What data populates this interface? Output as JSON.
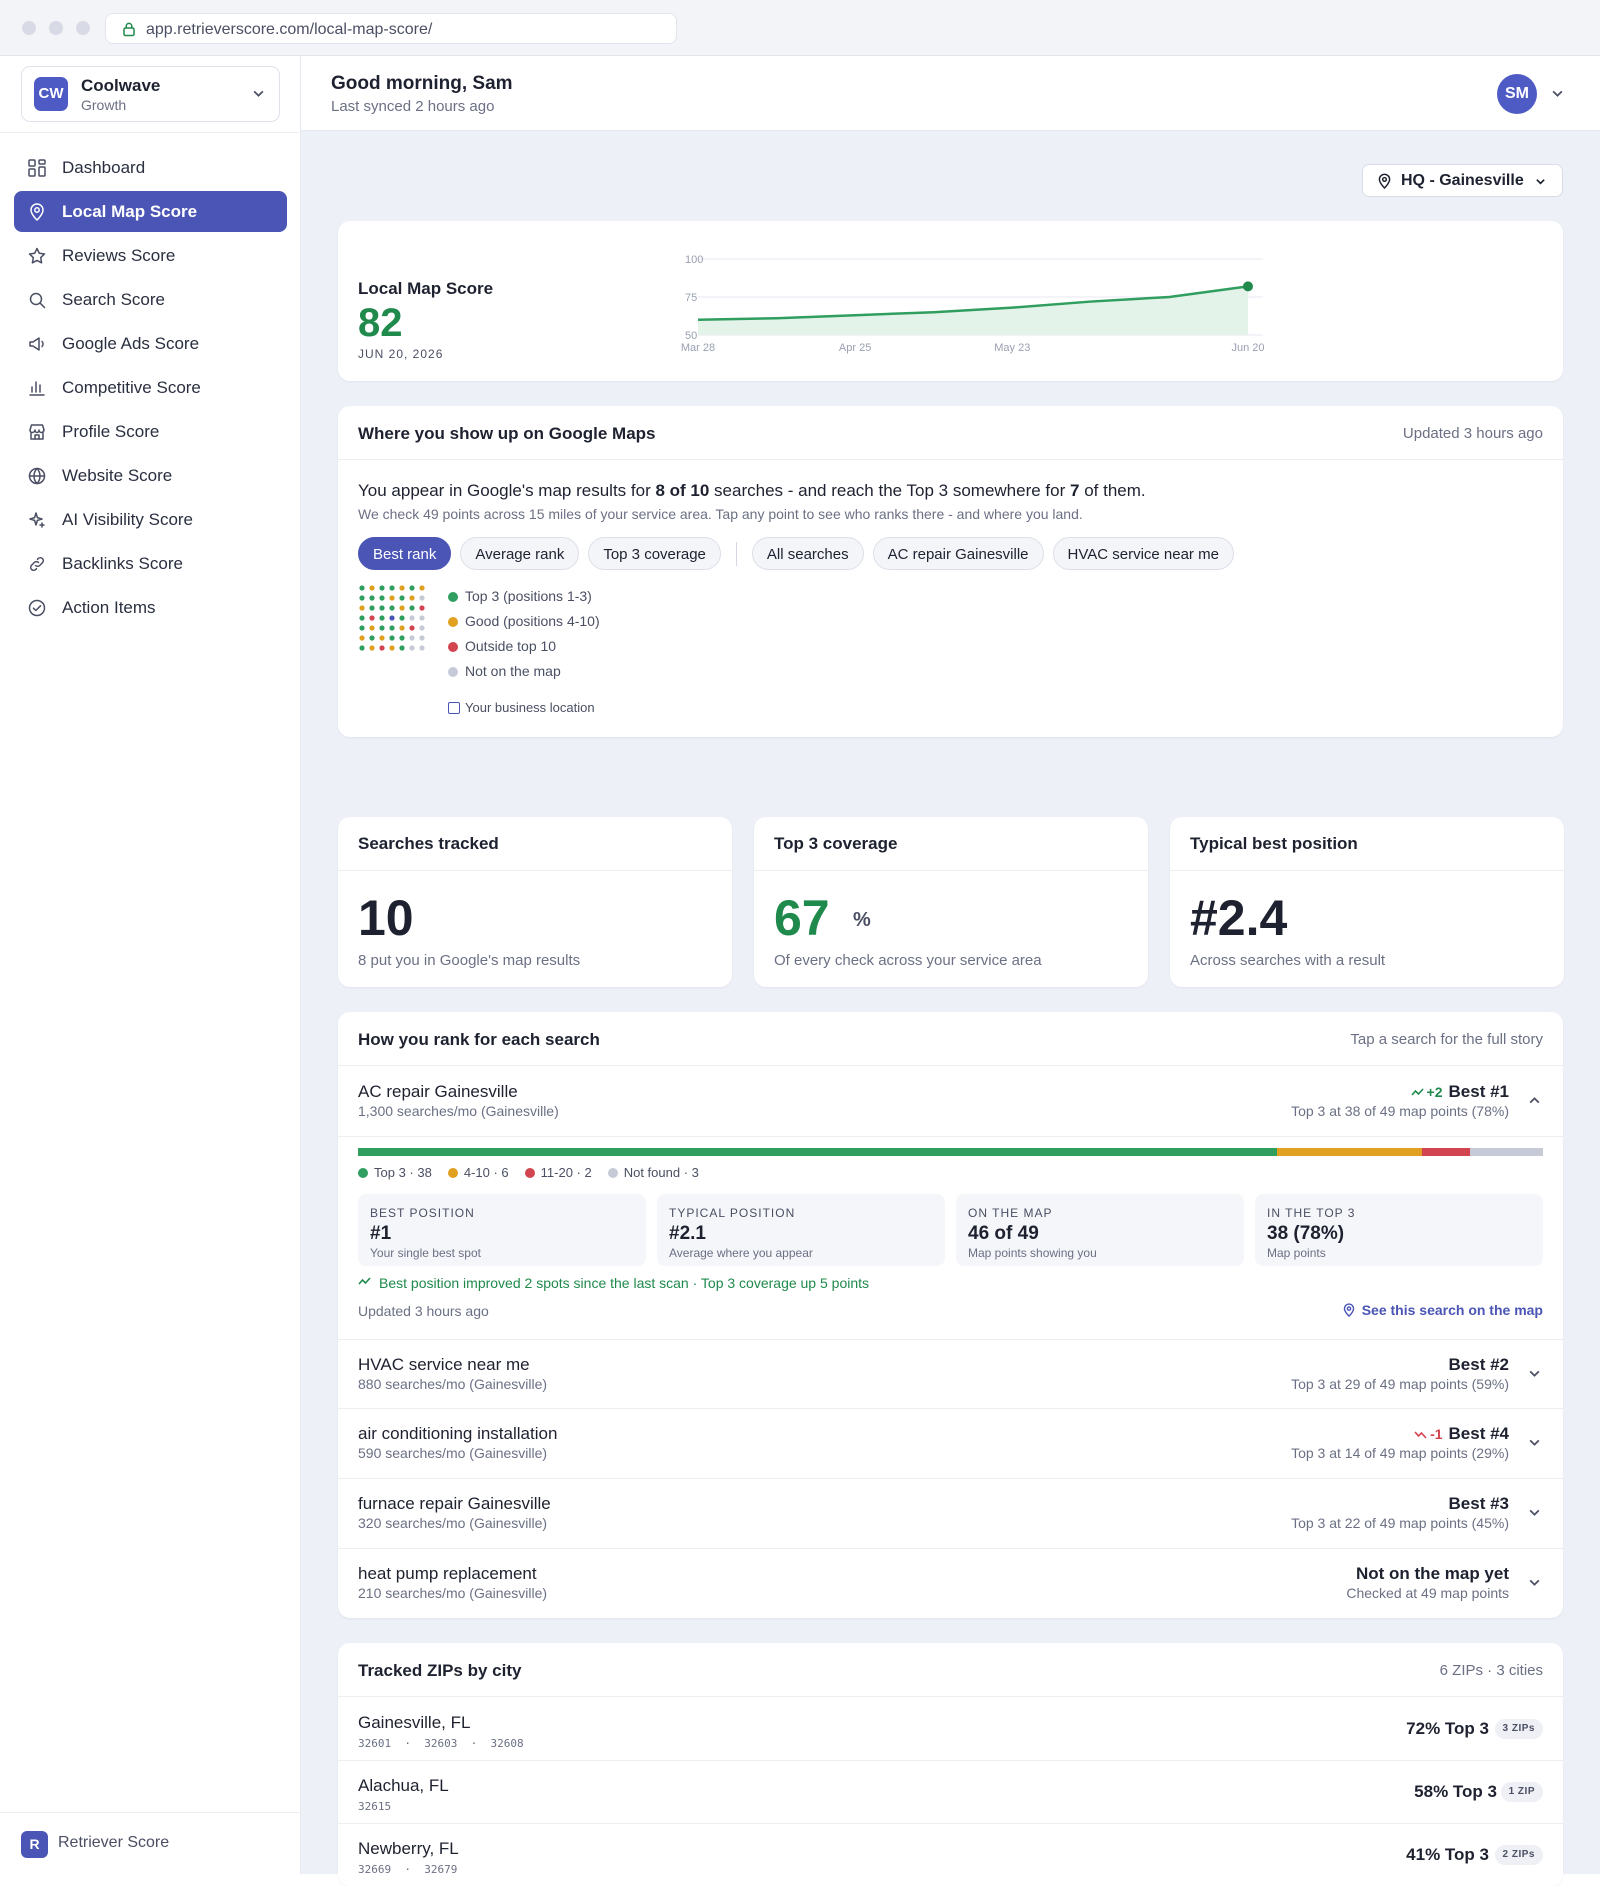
{
  "browser": {
    "url": "app.retrieverscore.com/local-map-score/"
  },
  "workspace": {
    "initials": "CW",
    "name": "Coolwave",
    "plan": "Growth"
  },
  "nav": [
    {
      "label": "Dashboard",
      "icon": "grid-icon"
    },
    {
      "label": "Local Map Score",
      "icon": "map-pin-icon",
      "active": true
    },
    {
      "label": "Reviews Score",
      "icon": "star-icon"
    },
    {
      "label": "Search Score",
      "icon": "search-icon"
    },
    {
      "label": "Google Ads Score",
      "icon": "megaphone-icon"
    },
    {
      "label": "Competitive Score",
      "icon": "bar-chart-icon"
    },
    {
      "label": "Profile Score",
      "icon": "storefront-icon"
    },
    {
      "label": "Website Score",
      "icon": "globe-icon"
    },
    {
      "label": "AI Visibility Score",
      "icon": "sparkle-icon"
    },
    {
      "label": "Backlinks Score",
      "icon": "link-icon"
    },
    {
      "label": "Action Items",
      "icon": "check-circle-icon"
    }
  ],
  "footer": {
    "logo": "R",
    "label": "Retriever Score"
  },
  "header": {
    "greeting": "Good morning, Sam",
    "synced": "Last synced 2 hours ago",
    "user_initials": "SM"
  },
  "location_selector": {
    "label": "HQ - Gainesville"
  },
  "score_card": {
    "label": "Local Map Score",
    "value": "82",
    "date": "JUN 20, 2026"
  },
  "chart_data": {
    "type": "area",
    "title": "",
    "y_ticks": [
      50,
      75,
      100
    ],
    "ylim": [
      50,
      100
    ],
    "x_tick_labels": [
      "Mar 28",
      "Apr 25",
      "May 23",
      "Jun 20"
    ],
    "series": [
      {
        "x": [
          "Mar 28",
          "Apr 11",
          "Apr 25",
          "May 9",
          "May 23",
          "Jun 6",
          "Jun 13",
          "Jun 20"
        ],
        "values": [
          60,
          61,
          63,
          65,
          68,
          72,
          75,
          82
        ]
      }
    ],
    "colors": {
      "line": "#2f9e5e",
      "fill": "#e3f3ea"
    }
  },
  "maps_card": {
    "title": "Where you show up on Google Maps",
    "updated": "Updated 3 hours ago",
    "summary_pre": "You appear in Google's map results for ",
    "summary_b1": "8 of 10",
    "summary_mid": " searches - and reach the Top 3 somewhere for ",
    "summary_b2": "7",
    "summary_post": " of them.",
    "sub": "We check 49 points across 15 miles of your service area. Tap any point to see who ranks there - and where you land.",
    "metric_pills": [
      "Best rank",
      "Average rank",
      "Top 3 coverage"
    ],
    "search_pills": [
      "All searches",
      "AC repair Gainesville",
      "HVAC service near me"
    ],
    "legend": [
      {
        "label": "Top 3 (positions 1-3)",
        "color": "#2f9e5e"
      },
      {
        "label": "Good (positions 4-10)",
        "color": "#e0a020"
      },
      {
        "label": "Outside top 10",
        "color": "#d24450"
      },
      {
        "label": "Not on the map",
        "color": "#c6cad6"
      }
    ],
    "business_location": "Your business location",
    "grid_colors": [
      [
        "#2f9e5e",
        "#e0a020",
        "#2f9e5e",
        "#2f9e5e",
        "#e0a020",
        "#2f9e5e",
        "#e0a020"
      ],
      [
        "#2f9e5e",
        "#2f9e5e",
        "#2f9e5e",
        "#e0a020",
        "#2f9e5e",
        "#e0a020",
        "#c6cad6"
      ],
      [
        "#e0a020",
        "#2f9e5e",
        "#2f9e5e",
        "#2f9e5e",
        "#e0a020",
        "#2f9e5e",
        "#d24450"
      ],
      [
        "#2f9e5e",
        "#d24450",
        "#2f9e5e",
        "#4a55b5",
        "#2f9e5e",
        "#c6cad6",
        "#c6cad6"
      ],
      [
        "#2f9e5e",
        "#e0a020",
        "#2f9e5e",
        "#2f9e5e",
        "#e0a020",
        "#d24450",
        "#c6cad6"
      ],
      [
        "#e0a020",
        "#2f9e5e",
        "#e0a020",
        "#2f9e5e",
        "#2f9e5e",
        "#c6cad6",
        "#c6cad6"
      ],
      [
        "#2f9e5e",
        "#e0a020",
        "#d24450",
        "#e0a020",
        "#2f9e5e",
        "#c6cad6",
        "#c6cad6"
      ]
    ]
  },
  "stats": [
    {
      "title": "Searches tracked",
      "value": "10",
      "unit": "",
      "desc": "8 put you in Google's map results",
      "green": false
    },
    {
      "title": "Top 3 coverage",
      "value": "67",
      "unit": "%",
      "desc": "Of every check across your service area",
      "green": true
    },
    {
      "title": "Typical best position",
      "value": "#2.4",
      "unit": "",
      "desc": "Across searches with a result",
      "green": false
    }
  ],
  "rank_card": {
    "title": "How you rank for each search",
    "hint": "Tap a search for the full story",
    "rows": [
      {
        "query": "AC repair Gainesville",
        "volume": "1,300 searches/mo (Gainesville)",
        "delta": "+2",
        "delta_dir": "up",
        "best": "Best #1",
        "top3": "Top 3 at 38 of 49 map points (78%)",
        "expanded": true
      },
      {
        "query": "HVAC service near me",
        "volume": "880 searches/mo (Gainesville)",
        "delta": "",
        "delta_dir": "",
        "best": "Best #2",
        "top3": "Top 3 at 29 of 49 map points (59%)"
      },
      {
        "query": "air conditioning installation",
        "volume": "590 searches/mo (Gainesville)",
        "delta": "-1",
        "delta_dir": "dn",
        "best": "Best #4",
        "top3": "Top 3 at 14 of 49 map points (29%)"
      },
      {
        "query": "furnace repair Gainesville",
        "volume": "320 searches/mo (Gainesville)",
        "delta": "",
        "delta_dir": "",
        "best": "Best #3",
        "top3": "Top 3 at 22 of 49 map points (45%)"
      },
      {
        "query": "heat pump replacement",
        "volume": "210 searches/mo (Gainesville)",
        "delta": "",
        "delta_dir": "",
        "best": "Not on the map yet",
        "top3": "Checked at 49 map points"
      }
    ],
    "detail": {
      "distribution": [
        {
          "label": "Top 3 · 38",
          "count": 38,
          "color": "#2f9e5e"
        },
        {
          "label": "4-10 · 6",
          "count": 6,
          "color": "#e0a020"
        },
        {
          "label": "11-20 · 2",
          "count": 2,
          "color": "#d24450"
        },
        {
          "label": "Not found · 3",
          "count": 3,
          "color": "#c6cad6"
        }
      ],
      "metrics": [
        {
          "label": "BEST POSITION",
          "value": "#1",
          "sub": "Your single best spot"
        },
        {
          "label": "TYPICAL POSITION",
          "value": "#2.1",
          "sub": "Average where you appear"
        },
        {
          "label": "ON THE MAP",
          "value": "46 of 49",
          "sub": "Map points showing you"
        },
        {
          "label": "IN THE TOP 3",
          "value": "38 (78%)",
          "sub": "Map points"
        }
      ],
      "improvement": "Best position improved 2 spots since the last scan · Top 3 coverage up 5 points",
      "updated": "Updated 3 hours ago",
      "see_map": "See this search on the map"
    }
  },
  "zips_card": {
    "title": "Tracked ZIPs by city",
    "summary": "6 ZIPs · 3 cities",
    "rows": [
      {
        "city": "Gainesville, FL",
        "zips": "32601  ·  32603  ·  32608",
        "pct": "72% Top 3",
        "badge": "3 ZIPs"
      },
      {
        "city": "Alachua, FL",
        "zips": "32615",
        "pct": "58% Top 3",
        "badge": "1 ZIP"
      },
      {
        "city": "Newberry, FL",
        "zips": "32669  ·  32679",
        "pct": "41% Top 3",
        "badge": "2 ZIPs"
      }
    ]
  }
}
